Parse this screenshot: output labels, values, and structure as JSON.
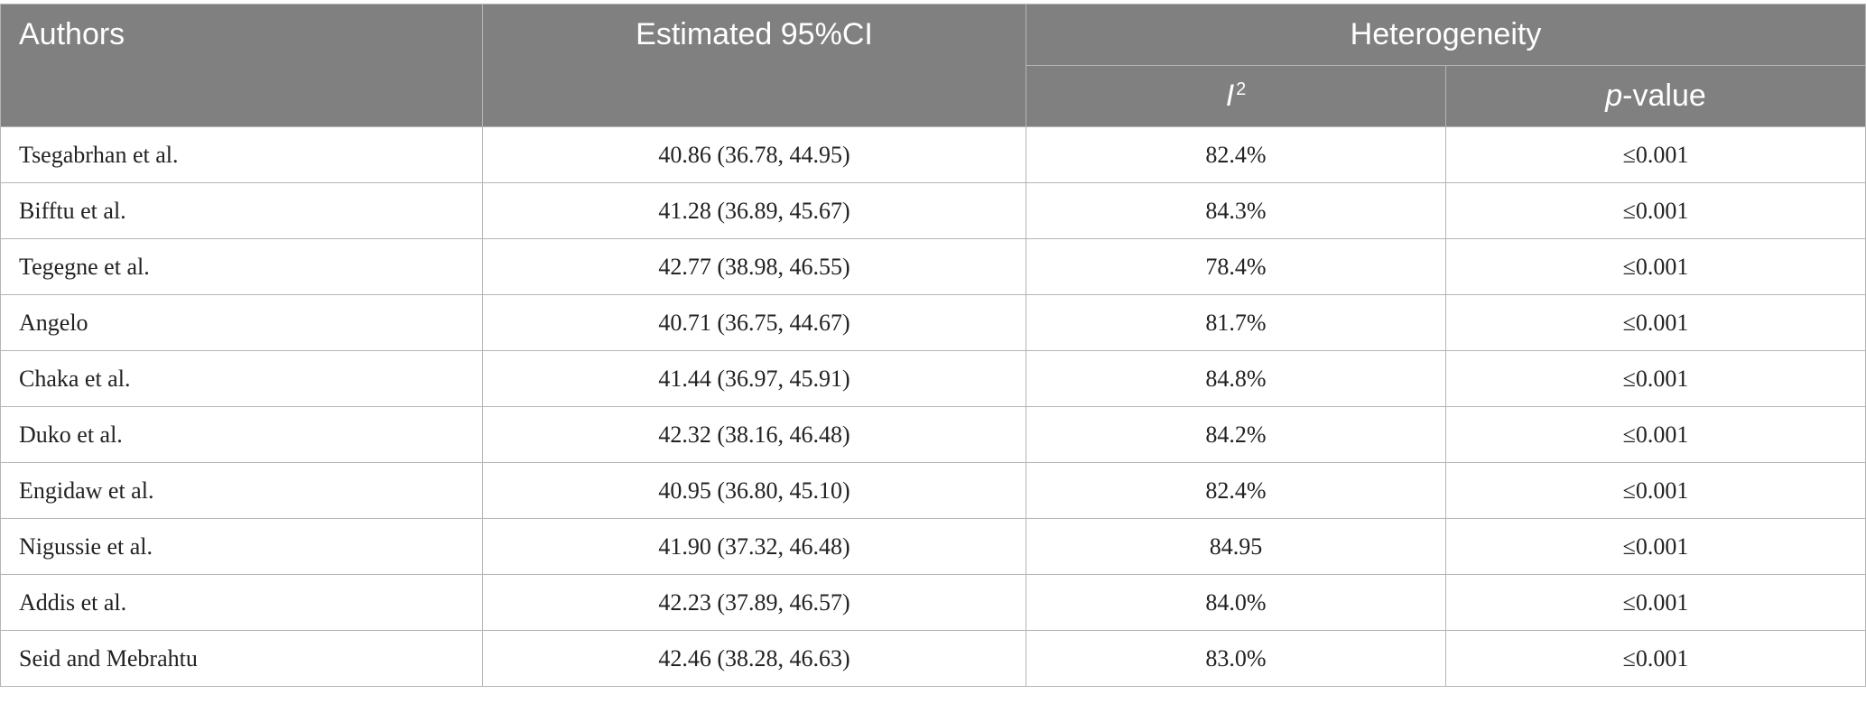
{
  "table": {
    "headers": {
      "authors": "Authors",
      "estimated": "Estimated 95%CI",
      "heterogeneity": "Heterogeneity",
      "i2_letter": "I",
      "i2_sup": "2",
      "pvalue_p": "p",
      "pvalue_rest": "-value"
    },
    "rows": [
      {
        "author": "Tsegabrhan et al.",
        "estimate": "40.86 (36.78, 44.95)",
        "i2": "82.4%",
        "p": "≤0.001"
      },
      {
        "author": "Bifftu et al.",
        "estimate": "41.28 (36.89, 45.67)",
        "i2": "84.3%",
        "p": "≤0.001"
      },
      {
        "author": "Tegegne et al.",
        "estimate": "42.77 (38.98, 46.55)",
        "i2": "78.4%",
        "p": "≤0.001"
      },
      {
        "author": "Angelo",
        "estimate": "40.71 (36.75, 44.67)",
        "i2": "81.7%",
        "p": "≤0.001"
      },
      {
        "author": "Chaka et al.",
        "estimate": "41.44 (36.97, 45.91)",
        "i2": "84.8%",
        "p": "≤0.001"
      },
      {
        "author": "Duko et al.",
        "estimate": "42.32 (38.16, 46.48)",
        "i2": "84.2%",
        "p": "≤0.001"
      },
      {
        "author": "Engidaw et al.",
        "estimate": "40.95 (36.80, 45.10)",
        "i2": "82.4%",
        "p": "≤0.001"
      },
      {
        "author": "Nigussie et al.",
        "estimate": "41.90 (37.32, 46.48)",
        "i2": "84.95",
        "p": "≤0.001"
      },
      {
        "author": "Addis et al.",
        "estimate": "42.23 (37.89, 46.57)",
        "i2": "84.0%",
        "p": "≤0.001"
      },
      {
        "author": "Seid and Mebrahtu",
        "estimate": "42.46 (38.28, 46.63)",
        "i2": "83.0%",
        "p": "≤0.001"
      }
    ]
  }
}
